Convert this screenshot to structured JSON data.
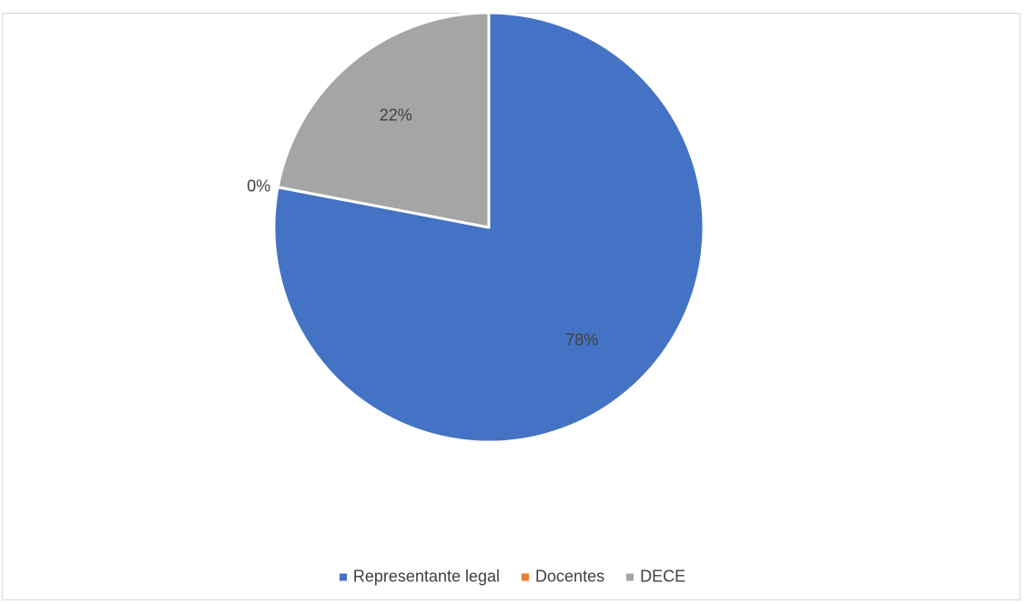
{
  "chart_data": {
    "type": "pie",
    "title": "",
    "categories": [
      "Representante legal",
      "Docentes",
      "DECE"
    ],
    "values": [
      78,
      0,
      22
    ],
    "labels": [
      "78%",
      "0%",
      "22%"
    ],
    "colors": [
      "#4472c4",
      "#ed7d31",
      "#a5a5a5"
    ],
    "legend": "bottom"
  }
}
